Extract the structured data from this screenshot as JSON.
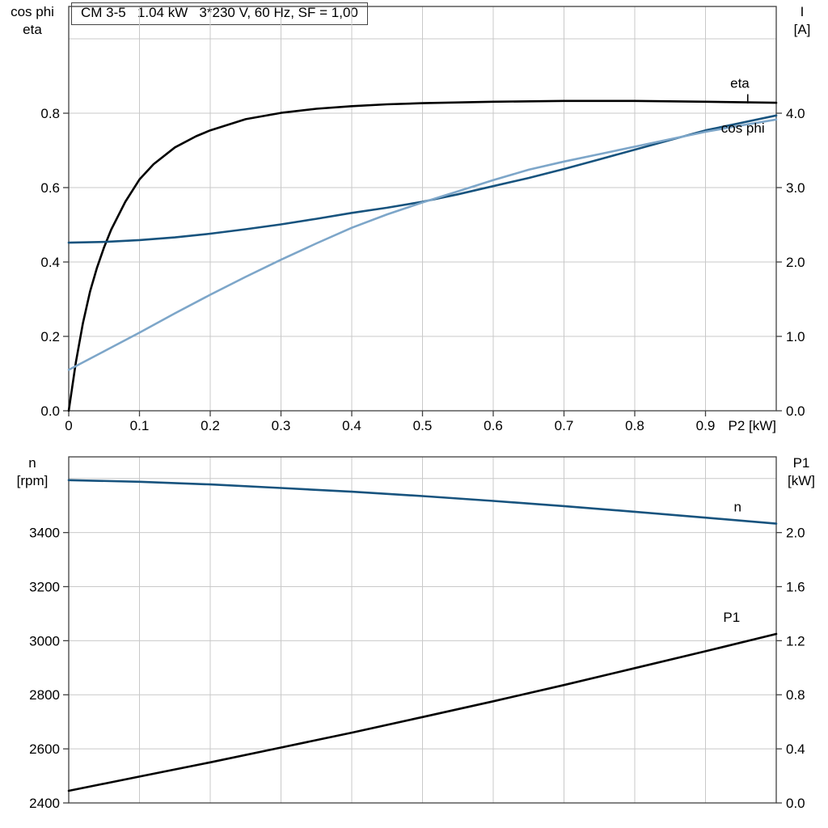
{
  "title_box": {
    "text": "CM 3-5   1.04 kW   3*230 V, 60 Hz, SF = 1,00"
  },
  "colors": {
    "black": "#000000",
    "dark_blue": "#17537e",
    "light_blue": "#7da6c9",
    "grid": "#c9c9c9",
    "frame": "#404040"
  },
  "corner_labels": {
    "top_left": "cos phi\neta",
    "top_right": "I\n[A]",
    "bottom_left": "n\n[rpm]",
    "bottom_right": "P1\n[kW]"
  },
  "chart_data": [
    {
      "type": "line",
      "name": "motor-electrical-curves",
      "x_axis": {
        "label": "P2 [kW]",
        "lim": [
          0,
          1
        ],
        "ticks": [
          {
            "v": 0,
            "label": "0"
          },
          {
            "v": 0.1,
            "label": "0.1"
          },
          {
            "v": 0.2,
            "label": "0.2"
          },
          {
            "v": 0.3,
            "label": "0.3"
          },
          {
            "v": 0.4,
            "label": "0.4"
          },
          {
            "v": 0.5,
            "label": "0.5"
          },
          {
            "v": 0.6,
            "label": "0.6"
          },
          {
            "v": 0.7,
            "label": "0.7"
          },
          {
            "v": 0.8,
            "label": "0.8"
          },
          {
            "v": 0.9,
            "label": "0.9"
          }
        ]
      },
      "y_left": {
        "label": "cos phi / eta",
        "lim": [
          0,
          1.087
        ],
        "ticks": [
          {
            "v": 0.0,
            "label": "0.0"
          },
          {
            "v": 0.2,
            "label": "0.2"
          },
          {
            "v": 0.4,
            "label": "0.4"
          },
          {
            "v": 0.6,
            "label": "0.6"
          },
          {
            "v": 0.8,
            "label": "0.8"
          }
        ]
      },
      "y_right": {
        "label": "I [A]",
        "lim": [
          0,
          5.435
        ],
        "ticks": [
          {
            "v": 0.0,
            "label": "0.0"
          },
          {
            "v": 1.0,
            "label": "1.0"
          },
          {
            "v": 2.0,
            "label": "2.0"
          },
          {
            "v": 3.0,
            "label": "3.0"
          },
          {
            "v": 4.0,
            "label": "4.0"
          }
        ]
      },
      "grid_x": [
        0.1,
        0.2,
        0.3,
        0.4,
        0.5,
        0.6,
        0.7,
        0.8,
        0.9
      ],
      "grid_y_left": [
        0.2,
        0.4,
        0.6,
        0.8,
        1.0
      ],
      "series": [
        {
          "name": "eta",
          "label": "eta",
          "axis": "left",
          "color_key": "black",
          "label_pos": [
            0.935,
            0.868
          ],
          "points": [
            [
              0,
              0
            ],
            [
              0.01,
              0.13
            ],
            [
              0.02,
              0.235
            ],
            [
              0.03,
              0.32
            ],
            [
              0.04,
              0.385
            ],
            [
              0.05,
              0.44
            ],
            [
              0.06,
              0.487
            ],
            [
              0.08,
              0.562
            ],
            [
              0.1,
              0.622
            ],
            [
              0.12,
              0.663
            ],
            [
              0.15,
              0.708
            ],
            [
              0.18,
              0.738
            ],
            [
              0.2,
              0.754
            ],
            [
              0.25,
              0.784
            ],
            [
              0.3,
              0.801
            ],
            [
              0.35,
              0.812
            ],
            [
              0.4,
              0.819
            ],
            [
              0.45,
              0.824
            ],
            [
              0.5,
              0.827
            ],
            [
              0.6,
              0.831
            ],
            [
              0.7,
              0.833
            ],
            [
              0.8,
              0.833
            ],
            [
              0.9,
              0.831
            ],
            [
              1,
              0.828
            ]
          ]
        },
        {
          "name": "I",
          "label": "I",
          "axis": "right",
          "color_key": "dark_blue",
          "label_pos": [
            0.957,
            4.13
          ],
          "points": [
            [
              0,
              2.26
            ],
            [
              0.05,
              2.27
            ],
            [
              0.1,
              2.295
            ],
            [
              0.15,
              2.33
            ],
            [
              0.2,
              2.38
            ],
            [
              0.25,
              2.44
            ],
            [
              0.3,
              2.505
            ],
            [
              0.35,
              2.58
            ],
            [
              0.4,
              2.66
            ],
            [
              0.45,
              2.73
            ],
            [
              0.5,
              2.81
            ],
            [
              0.55,
              2.91
            ],
            [
              0.6,
              3.02
            ],
            [
              0.65,
              3.13
            ],
            [
              0.7,
              3.25
            ],
            [
              0.75,
              3.38
            ],
            [
              0.8,
              3.51
            ],
            [
              0.85,
              3.64
            ],
            [
              0.9,
              3.77
            ],
            [
              0.95,
              3.87
            ],
            [
              1,
              3.97
            ]
          ]
        },
        {
          "name": "cos phi",
          "label": "cos phi",
          "axis": "left",
          "color_key": "light_blue",
          "label_pos": [
            0.922,
            0.748
          ],
          "points": [
            [
              0,
              0.11
            ],
            [
              0.05,
              0.16
            ],
            [
              0.1,
              0.21
            ],
            [
              0.15,
              0.262
            ],
            [
              0.2,
              0.312
            ],
            [
              0.25,
              0.36
            ],
            [
              0.3,
              0.406
            ],
            [
              0.35,
              0.45
            ],
            [
              0.4,
              0.492
            ],
            [
              0.45,
              0.528
            ],
            [
              0.5,
              0.56
            ],
            [
              0.55,
              0.59
            ],
            [
              0.6,
              0.62
            ],
            [
              0.65,
              0.648
            ],
            [
              0.7,
              0.67
            ],
            [
              0.75,
              0.69
            ],
            [
              0.8,
              0.71
            ],
            [
              0.85,
              0.73
            ],
            [
              0.9,
              0.75
            ],
            [
              0.95,
              0.767
            ],
            [
              1,
              0.783
            ]
          ]
        }
      ]
    },
    {
      "type": "line",
      "name": "motor-speed-power-curves",
      "x_axis": {
        "label": "",
        "lim": [
          0,
          1
        ],
        "ticks": []
      },
      "y_left": {
        "label": "n [rpm]",
        "lim": [
          2400,
          3680
        ],
        "ticks": [
          {
            "v": 2400,
            "label": "2400"
          },
          {
            "v": 2600,
            "label": "2600"
          },
          {
            "v": 2800,
            "label": "2800"
          },
          {
            "v": 3000,
            "label": "3000"
          },
          {
            "v": 3200,
            "label": "3200"
          },
          {
            "v": 3400,
            "label": "3400"
          }
        ]
      },
      "y_right": {
        "label": "P1 [kW]",
        "lim": [
          0,
          2.56
        ],
        "ticks": [
          {
            "v": 0.0,
            "label": "0.0"
          },
          {
            "v": 0.4,
            "label": "0.4"
          },
          {
            "v": 0.8,
            "label": "0.8"
          },
          {
            "v": 1.2,
            "label": "1.2"
          },
          {
            "v": 1.6,
            "label": "1.6"
          },
          {
            "v": 2.0,
            "label": "2.0"
          }
        ]
      },
      "grid_x": [
        0.1,
        0.2,
        0.3,
        0.4,
        0.5,
        0.6,
        0.7,
        0.8,
        0.9
      ],
      "grid_y_left": [
        2600,
        2800,
        3000,
        3200,
        3400,
        3600
      ],
      "series": [
        {
          "name": "n",
          "label": "n",
          "axis": "left",
          "color_key": "dark_blue",
          "label_pos": [
            0.94,
            3478
          ],
          "points": [
            [
              0,
              3594
            ],
            [
              0.1,
              3588
            ],
            [
              0.2,
              3578
            ],
            [
              0.3,
              3565
            ],
            [
              0.4,
              3551
            ],
            [
              0.5,
              3535
            ],
            [
              0.6,
              3517
            ],
            [
              0.7,
              3498
            ],
            [
              0.8,
              3477
            ],
            [
              0.9,
              3455
            ],
            [
              1,
              3433
            ]
          ]
        },
        {
          "name": "P1",
          "label": "P1",
          "axis": "right",
          "color_key": "black",
          "label_pos": [
            0.925,
            1.34
          ],
          "points": [
            [
              0,
              0.09
            ],
            [
              0.1,
              0.195
            ],
            [
              0.2,
              0.3
            ],
            [
              0.3,
              0.41
            ],
            [
              0.4,
              0.52
            ],
            [
              0.5,
              0.635
            ],
            [
              0.6,
              0.752
            ],
            [
              0.7,
              0.872
            ],
            [
              0.8,
              0.997
            ],
            [
              0.9,
              1.122
            ],
            [
              1,
              1.25
            ]
          ]
        }
      ]
    }
  ]
}
